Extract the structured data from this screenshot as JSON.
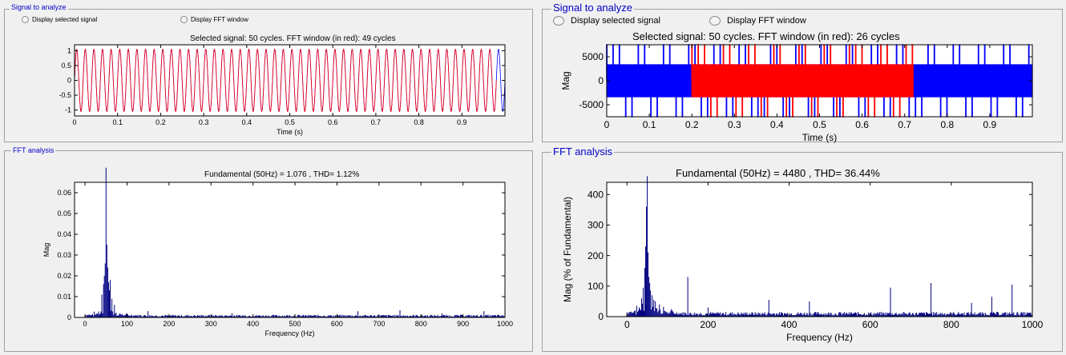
{
  "left": {
    "signal_panel": {
      "legend": "Signal to analyze",
      "radio_selected_label": "Display selected signal",
      "radio_fft_label": "Display FFT window",
      "selected_option": "Display selected signal",
      "title": "Selected signal: 50 cycles. FFT window (in red): 49 cycles"
    },
    "fft_panel": {
      "legend": "FFT analysis",
      "title": "Fundamental (50Hz) = 1.076 , THD= 1.12%"
    }
  },
  "right": {
    "signal_panel": {
      "legend": "Signal to analyze",
      "radio_selected_label": "Display selected signal",
      "radio_fft_label": "Display FFT window",
      "selected_option": "Display selected signal",
      "title": "Selected signal: 50 cycles. FFT window (in red): 26 cycles"
    },
    "fft_panel": {
      "legend": "FFT analysis",
      "title": "Fundamental (50Hz) = 4480 , THD= 36.44%"
    }
  },
  "chart_data": [
    {
      "id": "left-signal",
      "type": "line",
      "xlabel": "Time (s)",
      "ylabel": "",
      "xlim": [
        0,
        1
      ],
      "ylim": [
        -1.2,
        1.2
      ],
      "xticks": [
        0,
        0.1,
        0.2,
        0.3,
        0.4,
        0.5,
        0.6,
        0.7,
        0.8,
        0.9
      ],
      "xtick_labels": [
        "0",
        "0.1",
        "0.2",
        "0.3",
        "0.4",
        "0.5",
        "0.6",
        "0.7",
        "0.8",
        "0.9"
      ],
      "yticks": [
        -1,
        -0.5,
        0,
        0.5,
        1
      ],
      "ytick_labels": [
        "-1",
        "-0.5",
        "0",
        "0.5",
        "1"
      ],
      "series": [
        {
          "color": "#0000ff",
          "shape": "sine",
          "frequency_hz": 50,
          "amplitude": 1.05,
          "x_range": [
            0,
            1
          ]
        },
        {
          "color": "#ff0000",
          "shape": "sine",
          "frequency_hz": 50,
          "amplitude": 1.05,
          "x_range": [
            0.0,
            0.98
          ]
        }
      ],
      "grid": false
    },
    {
      "id": "left-fft",
      "type": "bar",
      "xlabel": "Frequency (Hz)",
      "ylabel": "Mag",
      "xlim": [
        -25,
        1000
      ],
      "ylim": [
        0,
        0.065
      ],
      "xticks": [
        0,
        100,
        200,
        300,
        400,
        500,
        600,
        700,
        800,
        900,
        1000
      ],
      "xtick_labels": [
        "0",
        "100",
        "200",
        "300",
        "400",
        "500",
        "600",
        "700",
        "800",
        "900",
        "1000"
      ],
      "yticks": [
        0,
        0.01,
        0.02,
        0.03,
        0.04,
        0.05,
        0.06
      ],
      "ytick_labels": [
        "0",
        "0.01",
        "0.02",
        "0.03",
        "0.04",
        "0.05",
        "0.06"
      ],
      "peaks": [
        [
          40,
          0.011
        ],
        [
          44,
          0.016
        ],
        [
          46,
          0.02
        ],
        [
          48,
          0.026
        ],
        [
          50,
          0.072
        ],
        [
          52,
          0.035
        ],
        [
          54,
          0.024
        ],
        [
          56,
          0.017
        ],
        [
          58,
          0.013
        ],
        [
          60,
          0.018
        ],
        [
          64,
          0.009
        ],
        [
          70,
          0.006
        ],
        [
          150,
          0.003
        ],
        [
          350,
          0.002
        ],
        [
          650,
          0.003
        ],
        [
          750,
          0.0035
        ],
        [
          850,
          0.002
        ],
        [
          950,
          0.003
        ]
      ],
      "noise_floor": 0.001,
      "bar_color": "#000080",
      "grid": false
    },
    {
      "id": "right-signal",
      "type": "line",
      "xlabel": "Time (s)",
      "ylabel": "Mag",
      "xlim": [
        0,
        1
      ],
      "ylim": [
        -7500,
        7500
      ],
      "xticks": [
        0,
        0.1,
        0.2,
        0.3,
        0.4,
        0.5,
        0.6,
        0.7,
        0.8,
        0.9
      ],
      "xtick_labels": [
        "0",
        "0.1",
        "0.2",
        "0.3",
        "0.4",
        "0.5",
        "0.6",
        "0.7",
        "0.8",
        "0.9"
      ],
      "yticks": [
        -5000,
        0,
        5000
      ],
      "ytick_labels": [
        "-5000",
        "0",
        "5000"
      ],
      "series": [
        {
          "color": "#0000ff",
          "shape": "pwm",
          "x_range": [
            0,
            1
          ],
          "levels": [
            -3300,
            3300
          ],
          "spike_level": 7800
        },
        {
          "color": "#ff0000",
          "shape": "pwm",
          "x_range": [
            0.2,
            0.72
          ],
          "levels": [
            -3300,
            3300
          ],
          "spike_level": 7800
        }
      ],
      "grid": false
    },
    {
      "id": "right-fft",
      "type": "bar",
      "xlabel": "Frequency (Hz)",
      "ylabel": "Mag (% of Fundamental)",
      "xlim": [
        -50,
        1000
      ],
      "ylim": [
        0,
        440
      ],
      "xticks": [
        0,
        200,
        400,
        600,
        800,
        1000
      ],
      "xtick_labels": [
        "0",
        "200",
        "400",
        "600",
        "800",
        "1000"
      ],
      "yticks": [
        0,
        100,
        200,
        300,
        400
      ],
      "ytick_labels": [
        "0",
        "100",
        "200",
        "300",
        "400"
      ],
      "peaks": [
        [
          20,
          20
        ],
        [
          30,
          30
        ],
        [
          36,
          60
        ],
        [
          40,
          95
        ],
        [
          44,
          160
        ],
        [
          46,
          230
        ],
        [
          48,
          360
        ],
        [
          50,
          460
        ],
        [
          52,
          210
        ],
        [
          54,
          130
        ],
        [
          56,
          110
        ],
        [
          58,
          85
        ],
        [
          62,
          70
        ],
        [
          66,
          55
        ],
        [
          70,
          50
        ],
        [
          80,
          40
        ],
        [
          90,
          32
        ],
        [
          110,
          25
        ],
        [
          150,
          130
        ],
        [
          200,
          30
        ],
        [
          350,
          55
        ],
        [
          450,
          50
        ],
        [
          650,
          95
        ],
        [
          750,
          110
        ],
        [
          850,
          45
        ],
        [
          900,
          65
        ],
        [
          950,
          105
        ]
      ],
      "noise_floor": 12,
      "bar_color": "#000080",
      "grid": false
    }
  ]
}
